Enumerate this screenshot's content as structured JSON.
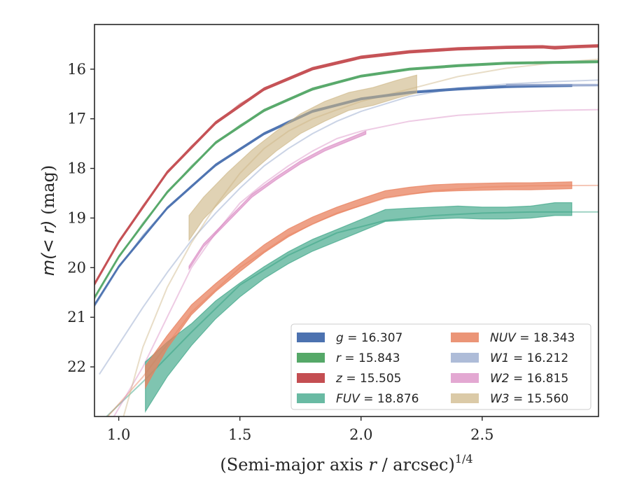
{
  "chart_data": {
    "type": "line",
    "xlabel": "(Semi-major axis r / arcsec)^{1/4}",
    "ylabel": "m(< r) (mag)",
    "xlim": [
      0.9,
      2.98
    ],
    "ylim": [
      23.0,
      15.1
    ],
    "y_inverted": true,
    "xticks": [
      1.0,
      1.5,
      2.0,
      2.5
    ],
    "xtick_labels": [
      "1.0",
      "1.5",
      "2.0",
      "2.5"
    ],
    "yticks": [
      16,
      17,
      18,
      19,
      20,
      21,
      22
    ],
    "ytick_labels": [
      "16",
      "17",
      "18",
      "19",
      "20",
      "21",
      "22"
    ],
    "grid": false,
    "legend": {
      "position": "lower-right",
      "columns": 2
    },
    "series": [
      {
        "key": "g",
        "label_var": "g",
        "label_value": "16.307",
        "color": "#4c72b0",
        "opacity": 0.95,
        "model": {
          "x": [
            0.9,
            1.0,
            1.1,
            1.2,
            1.3,
            1.4,
            1.5,
            1.6,
            1.7,
            1.8,
            1.9,
            2.0,
            2.2,
            2.4,
            2.6,
            2.8,
            2.98
          ],
          "y": [
            20.78,
            20.0,
            19.35,
            18.8,
            18.35,
            17.95,
            17.6,
            17.3,
            17.05,
            16.85,
            16.72,
            16.6,
            16.48,
            16.41,
            16.37,
            16.34,
            16.33
          ]
        },
        "band": {
          "x": [
            0.9,
            1.0,
            1.2,
            1.4,
            1.6,
            1.8,
            2.0,
            2.2,
            2.4,
            2.6,
            2.87
          ],
          "y": [
            20.75,
            19.98,
            18.8,
            17.93,
            17.3,
            16.85,
            16.6,
            16.47,
            16.4,
            16.35,
            16.33
          ],
          "half_width": 0.02
        }
      },
      {
        "key": "r",
        "label_var": "r",
        "label_value": "15.843",
        "color": "#55a868",
        "opacity": 0.95,
        "model": {
          "x": [
            0.9,
            1.0,
            1.1,
            1.2,
            1.3,
            1.4,
            1.5,
            1.6,
            1.7,
            1.8,
            1.9,
            2.0,
            2.2,
            2.4,
            2.6,
            2.8,
            2.98
          ],
          "y": [
            20.63,
            19.8,
            19.1,
            18.5,
            17.95,
            17.5,
            17.13,
            16.85,
            16.6,
            16.42,
            16.27,
            16.15,
            16.0,
            15.93,
            15.89,
            15.86,
            15.85
          ]
        },
        "band": {
          "x": [
            0.9,
            1.0,
            1.2,
            1.4,
            1.6,
            1.8,
            2.0,
            2.2,
            2.4,
            2.6,
            2.98
          ],
          "y": [
            20.6,
            19.78,
            18.48,
            17.48,
            16.83,
            16.4,
            16.14,
            16.0,
            15.93,
            15.88,
            15.85
          ],
          "half_width": 0.02
        }
      },
      {
        "key": "z",
        "label_var": "z",
        "label_value": "15.505",
        "color": "#c44e52",
        "opacity": 0.95,
        "model": {
          "x": [
            0.9,
            1.0,
            1.1,
            1.2,
            1.3,
            1.4,
            1.5,
            1.6,
            1.7,
            1.8,
            1.9,
            2.0,
            2.2,
            2.4,
            2.6,
            2.8,
            2.98
          ],
          "y": [
            20.35,
            19.5,
            18.75,
            18.1,
            17.55,
            17.1,
            16.7,
            16.42,
            16.18,
            16.0,
            15.87,
            15.77,
            15.65,
            15.59,
            15.56,
            15.54,
            15.53
          ]
        },
        "band": {
          "x": [
            0.9,
            1.0,
            1.2,
            1.4,
            1.6,
            1.8,
            2.0,
            2.2,
            2.4,
            2.6,
            2.75,
            2.8,
            2.87,
            2.98
          ],
          "y": [
            20.33,
            19.48,
            18.08,
            17.08,
            16.4,
            15.99,
            15.76,
            15.65,
            15.59,
            15.56,
            15.55,
            15.57,
            15.55,
            15.53
          ],
          "half_width": 0.025
        }
      },
      {
        "key": "FUV",
        "label_var": "FUV",
        "label_value": "18.876",
        "color": "#2a9d7c",
        "opacity": 0.6,
        "model": {
          "x": [
            0.95,
            1.1,
            1.3,
            1.5,
            1.7,
            1.9,
            2.1,
            2.3,
            2.5,
            2.7,
            2.98
          ],
          "y": [
            23.0,
            22.3,
            21.3,
            20.35,
            19.75,
            19.3,
            19.05,
            18.95,
            18.9,
            18.88,
            18.876
          ]
        },
        "band": {
          "x": [
            1.11,
            1.2,
            1.3,
            1.4,
            1.5,
            1.6,
            1.7,
            1.8,
            1.9,
            2.0,
            2.1,
            2.2,
            2.3,
            2.4,
            2.5,
            2.6,
            2.7,
            2.8,
            2.87
          ],
          "y": [
            22.4,
            21.85,
            21.35,
            20.85,
            20.45,
            20.1,
            19.8,
            19.55,
            19.35,
            19.15,
            18.95,
            18.92,
            18.9,
            18.88,
            18.9,
            18.9,
            18.88,
            18.82,
            18.82
          ],
          "half_width": [
            0.5,
            0.35,
            0.22,
            0.18,
            0.14,
            0.12,
            0.12,
            0.12,
            0.12,
            0.12,
            0.12,
            0.12,
            0.12,
            0.12,
            0.12,
            0.12,
            0.12,
            0.13,
            0.13
          ]
        }
      },
      {
        "key": "NUV",
        "label_var": "NUV",
        "label_value": "18.343",
        "color": "#e8825f",
        "opacity": 0.75,
        "model": {
          "x": [
            0.9,
            1.1,
            1.3,
            1.5,
            1.7,
            1.9,
            2.1,
            2.3,
            2.5,
            2.7,
            2.98
          ],
          "y": [
            23.3,
            22.2,
            20.9,
            20.0,
            19.35,
            18.9,
            18.6,
            18.45,
            18.38,
            18.35,
            18.343
          ]
        },
        "band": {
          "x": [
            1.11,
            1.2,
            1.3,
            1.4,
            1.5,
            1.6,
            1.7,
            1.8,
            1.9,
            2.0,
            2.1,
            2.2,
            2.3,
            2.4,
            2.5,
            2.6,
            2.7,
            2.8,
            2.87
          ],
          "y": [
            22.2,
            21.5,
            20.85,
            20.4,
            20.0,
            19.62,
            19.3,
            19.05,
            18.85,
            18.68,
            18.52,
            18.45,
            18.4,
            18.38,
            18.37,
            18.36,
            18.36,
            18.35,
            18.34
          ],
          "half_width": [
            0.22,
            0.13,
            0.1,
            0.08,
            0.08,
            0.08,
            0.08,
            0.07,
            0.07,
            0.07,
            0.07,
            0.07,
            0.07,
            0.07,
            0.07,
            0.07,
            0.07,
            0.07,
            0.07
          ]
        }
      },
      {
        "key": "W1",
        "label_var": "W1",
        "label_value": "16.212",
        "color": "#8c9fc8",
        "opacity": 0.6,
        "model": {
          "x": [
            0.92,
            1.0,
            1.1,
            1.2,
            1.3,
            1.4,
            1.5,
            1.6,
            1.7,
            1.8,
            1.9,
            2.0,
            2.2,
            2.4,
            2.6,
            2.8,
            2.98
          ],
          "y": [
            22.15,
            21.55,
            20.8,
            20.1,
            19.45,
            18.9,
            18.4,
            17.95,
            17.6,
            17.3,
            17.05,
            16.85,
            16.55,
            16.38,
            16.3,
            16.25,
            16.22
          ]
        },
        "band": {
          "x": [
            2.6,
            2.7,
            2.8,
            2.9,
            2.98
          ],
          "y": [
            16.32,
            16.32,
            16.32,
            16.32,
            16.32
          ],
          "half_width": 0.015
        }
      },
      {
        "key": "W2",
        "label_var": "W2",
        "label_value": "16.815",
        "color": "#da8bc3",
        "opacity": 0.65,
        "model": {
          "x": [
            0.98,
            1.1,
            1.2,
            1.3,
            1.4,
            1.5,
            1.6,
            1.7,
            1.8,
            1.9,
            2.0,
            2.2,
            2.4,
            2.6,
            2.8,
            2.98
          ],
          "y": [
            23.0,
            22.0,
            21.0,
            20.0,
            19.3,
            18.7,
            18.3,
            17.95,
            17.65,
            17.4,
            17.25,
            17.05,
            16.93,
            16.87,
            16.83,
            16.815
          ]
        },
        "band": {
          "x": [
            1.29,
            1.35,
            1.45,
            1.55,
            1.65,
            1.75,
            1.85,
            1.95,
            2.02
          ],
          "y": [
            20.0,
            19.55,
            19.05,
            18.55,
            18.2,
            17.88,
            17.62,
            17.42,
            17.28
          ],
          "half_width": 0.03
        }
      },
      {
        "key": "W3",
        "label_var": "W3",
        "label_value": "15.560",
        "color": "#ccb482",
        "opacity": 0.6,
        "model": {
          "x": [
            1.02,
            1.1,
            1.2,
            1.3,
            1.4,
            1.5,
            1.6,
            1.7,
            1.8,
            1.9,
            2.0,
            2.2,
            2.4,
            2.6,
            2.8,
            2.98
          ],
          "y": [
            23.0,
            21.6,
            20.4,
            19.5,
            18.75,
            18.1,
            17.6,
            17.25,
            17.0,
            16.82,
            16.65,
            16.4,
            16.15,
            15.98,
            15.87,
            15.8
          ]
        },
        "band": {
          "x": [
            1.29,
            1.35,
            1.45,
            1.55,
            1.65,
            1.75,
            1.85,
            1.95,
            2.05,
            2.15,
            2.23
          ],
          "y": [
            19.2,
            18.8,
            18.3,
            17.85,
            17.45,
            17.1,
            16.85,
            16.65,
            16.55,
            16.4,
            16.3
          ],
          "half_width": [
            0.25,
            0.22,
            0.22,
            0.22,
            0.2,
            0.2,
            0.2,
            0.18,
            0.18,
            0.18,
            0.18
          ]
        }
      }
    ]
  }
}
